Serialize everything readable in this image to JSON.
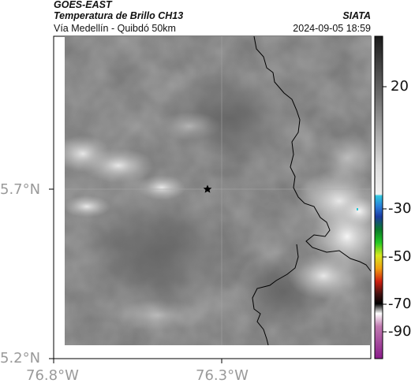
{
  "header": {
    "satellite": "GOES-EAST",
    "product": "Temperatura de Brillo CH13",
    "region": "Vía Medellín - Quibdó 50km",
    "agency": "SIATA",
    "datetime": "2024-09-05 18:59"
  },
  "map": {
    "x_ticks": [
      "76.8°W",
      "76.3°W"
    ],
    "y_ticks": [
      "5.7°N",
      "5.2°N"
    ],
    "marker": "star"
  },
  "colorbar": {
    "ticks": [
      "20",
      "-30",
      "-50",
      "-70",
      "-90"
    ]
  },
  "colors": {
    "cloud_gray": "#7a7a7a",
    "cloud_bright": "#e6e6e6",
    "border_line": "#000000",
    "tick_text": "#9a9a9a"
  }
}
